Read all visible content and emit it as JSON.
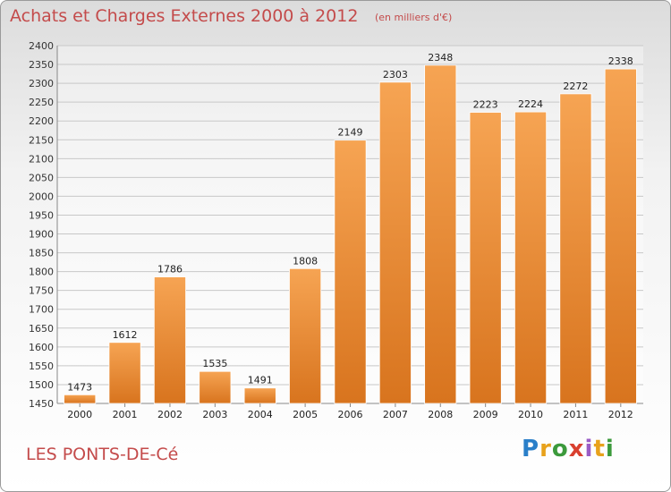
{
  "title": "Achats et Charges Externes 2000 à 2012",
  "subtitle": "(en milliers d'€)",
  "city": "LES PONTS-DE-Cé",
  "logo": {
    "text": "Proxiti"
  },
  "colors": {
    "bar_top": "#f6a453",
    "bar_bottom": "#d8741e",
    "title": "#c44b4b"
  },
  "chart_data": {
    "type": "bar",
    "categories": [
      "2000",
      "2001",
      "2002",
      "2003",
      "2004",
      "2005",
      "2006",
      "2007",
      "2008",
      "2009",
      "2010",
      "2011",
      "2012"
    ],
    "values": [
      1473,
      1612,
      1786,
      1535,
      1491,
      1808,
      2149,
      2303,
      2348,
      2223,
      2224,
      2272,
      2338
    ],
    "ylim": [
      1450,
      2400
    ],
    "yticks": [
      1450,
      1500,
      1550,
      1600,
      1650,
      1700,
      1750,
      1800,
      1850,
      1900,
      1950,
      2000,
      2050,
      2100,
      2150,
      2200,
      2250,
      2300,
      2350,
      2400
    ],
    "grid": true,
    "xlabel": "",
    "ylabel": ""
  }
}
